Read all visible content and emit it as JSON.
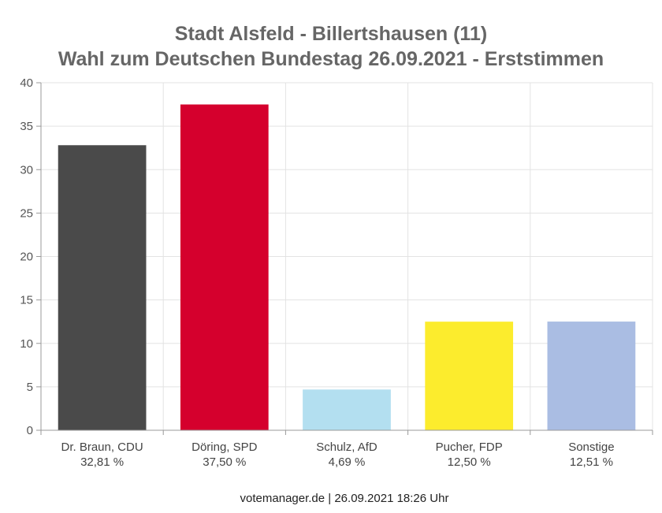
{
  "chart_data": {
    "type": "bar",
    "title": "Stadt Alsfeld - Billertshausen (11)",
    "subtitle": "Wahl zum Deutschen Bundestag 26.09.2021  - Erststimmen",
    "categories": [
      "Dr. Braun, CDU",
      "Döring, SPD",
      "Schulz, AfD",
      "Pucher, FDP",
      "Sonstige"
    ],
    "value_labels": [
      "32,81 %",
      "37,50 %",
      "4,69 %",
      "12,50 %",
      "12,51 %"
    ],
    "values": [
      32.81,
      37.5,
      4.69,
      12.5,
      12.51
    ],
    "colors": [
      "#4a4a4a",
      "#d5002d",
      "#b3dff0",
      "#fcec2d",
      "#aabde3"
    ],
    "ylim": [
      0,
      40
    ],
    "yticks": [
      0,
      5,
      10,
      15,
      20,
      25,
      30,
      35,
      40
    ],
    "grid": true,
    "xlabel": "",
    "ylabel": ""
  },
  "footer": "votemanager.de | 26.09.2021 18:26 Uhr"
}
